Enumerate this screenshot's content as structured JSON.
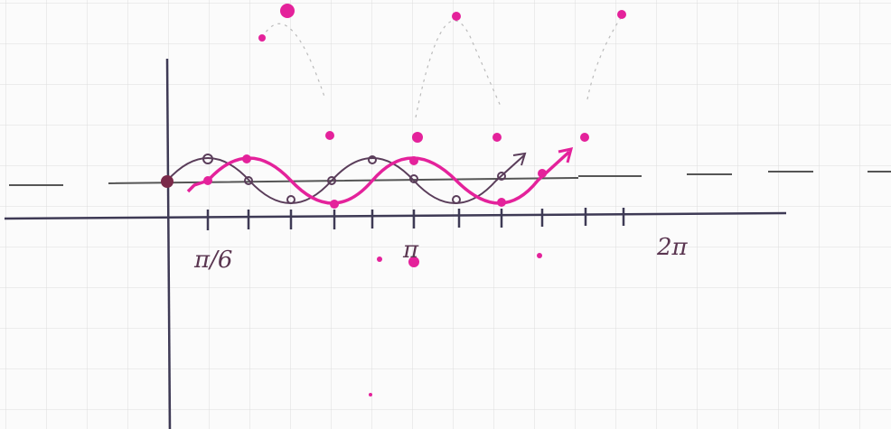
{
  "axis_labels": [
    "π/6",
    "π",
    "2π"
  ]
}
